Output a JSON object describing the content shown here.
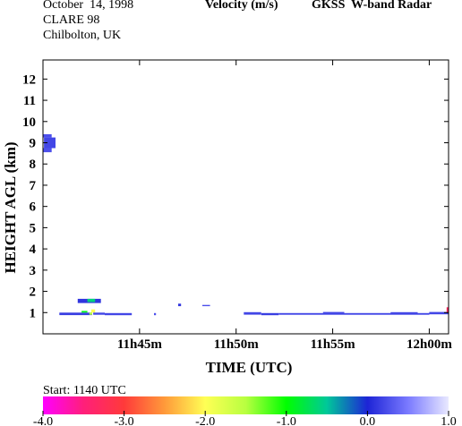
{
  "header": {
    "date": "October  14, 1998",
    "campaign": "CLARE 98",
    "site": "Chilbolton, UK",
    "quantity": "Velocity (m/s)",
    "instrument": "GKSS  W-band Radar"
  },
  "chart_data": {
    "type": "heatmap",
    "title": "Velocity (m/s)",
    "xlabel": "TIME (UTC)",
    "ylabel": "HEIGHT AGL (km)",
    "x_ticks": [
      {
        "minute": 5,
        "label": "11h45m"
      },
      {
        "minute": 10,
        "label": "11h50m"
      },
      {
        "minute": 15,
        "label": "11h55m"
      },
      {
        "minute": 20,
        "label": "12h00m"
      }
    ],
    "xlim_minutes_after_1140": [
      0,
      21
    ],
    "ylim": [
      0,
      12.9
    ],
    "y_ticks": [
      1,
      2,
      3,
      4,
      5,
      6,
      7,
      8,
      9,
      10,
      11,
      12
    ],
    "start_label": "Start: 1140 UTC",
    "colorbar": {
      "ticks": [
        -4.0,
        -3.0,
        -2.0,
        -1.0,
        0.0,
        1.0
      ],
      "tick_labels": [
        "-4.0",
        "-3.0",
        "-2.0",
        "-1.0",
        "0.0",
        "1.0"
      ],
      "stops": [
        {
          "v": -4.0,
          "color": "#ff00ff"
        },
        {
          "v": -3.5,
          "color": "#ff1f7a"
        },
        {
          "v": -3.0,
          "color": "#ff3a3a"
        },
        {
          "v": -2.5,
          "color": "#ff9a3a"
        },
        {
          "v": -2.0,
          "color": "#ffff55"
        },
        {
          "v": -1.5,
          "color": "#b8ff40"
        },
        {
          "v": -1.0,
          "color": "#00ff00"
        },
        {
          "v": -0.5,
          "color": "#00c89a"
        },
        {
          "v": 0.0,
          "color": "#1d24d6"
        },
        {
          "v": 0.5,
          "color": "#7a7aff"
        },
        {
          "v": 1.0,
          "color": "#e9e9ff"
        }
      ]
    },
    "echoes": [
      {
        "t0": 0.05,
        "t1": 0.65,
        "h0": 8.75,
        "h1": 9.25,
        "v": 0.2
      },
      {
        "t0": 0.0,
        "t1": 0.45,
        "h0": 8.55,
        "h1": 8.75,
        "v": 0.25
      },
      {
        "t0": 0.0,
        "t1": 0.45,
        "h0": 9.25,
        "h1": 9.4,
        "v": 0.25
      },
      {
        "t0": 0.85,
        "t1": 2.55,
        "h0": 0.88,
        "h1": 1.0,
        "v": 0.15
      },
      {
        "t0": 1.8,
        "t1": 3.0,
        "h0": 1.45,
        "h1": 1.65,
        "v": 0.1
      },
      {
        "t0": 2.3,
        "t1": 2.7,
        "h0": 1.5,
        "h1": 1.65,
        "v": -0.6
      },
      {
        "t0": 2.0,
        "t1": 2.3,
        "h0": 1.0,
        "h1": 1.08,
        "v": -0.9
      },
      {
        "t0": 2.5,
        "t1": 2.7,
        "h0": 1.0,
        "h1": 1.15,
        "v": -2.0
      },
      {
        "t0": 2.4,
        "t1": 2.55,
        "h0": 0.9,
        "h1": 1.0,
        "v": -1.5
      },
      {
        "t0": 2.6,
        "t1": 3.2,
        "h0": 0.9,
        "h1": 1.0,
        "v": 0.2
      },
      {
        "t0": 3.2,
        "t1": 4.6,
        "h0": 0.88,
        "h1": 0.98,
        "v": 0.2
      },
      {
        "t0": 5.75,
        "t1": 5.85,
        "h0": 0.88,
        "h1": 0.98,
        "v": 0.25
      },
      {
        "t0": 7.0,
        "t1": 7.15,
        "h0": 1.3,
        "h1": 1.42,
        "v": 0.1
      },
      {
        "t0": 8.25,
        "t1": 8.65,
        "h0": 1.3,
        "h1": 1.36,
        "v": 0.25
      },
      {
        "t0": 10.4,
        "t1": 11.3,
        "h0": 0.9,
        "h1": 1.02,
        "v": 0.2
      },
      {
        "t0": 11.3,
        "t1": 12.2,
        "h0": 0.88,
        "h1": 0.98,
        "v": 0.15
      },
      {
        "t0": 12.2,
        "t1": 20.0,
        "h0": 0.9,
        "h1": 0.98,
        "v": 0.2
      },
      {
        "t0": 14.5,
        "t1": 15.6,
        "h0": 0.95,
        "h1": 1.03,
        "v": 0.2
      },
      {
        "t0": 18.0,
        "t1": 19.4,
        "h0": 0.95,
        "h1": 1.02,
        "v": 0.2
      },
      {
        "t0": 20.0,
        "t1": 21.0,
        "h0": 0.92,
        "h1": 1.03,
        "v": 0.2
      },
      {
        "t0": 20.9,
        "t1": 21.0,
        "h0": 1.0,
        "h1": 1.25,
        "v": -3.3
      }
    ]
  }
}
